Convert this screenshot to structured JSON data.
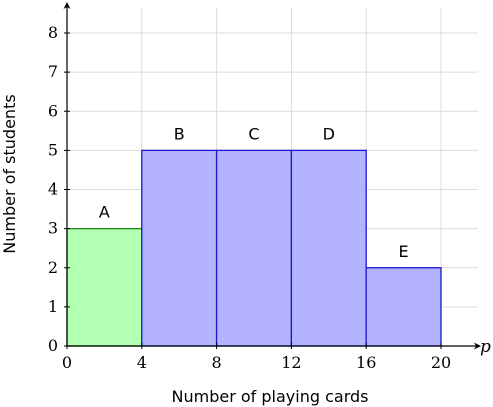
{
  "chart_data": {
    "type": "bar",
    "xlabel": "Number of playing cards",
    "ylabel": "Number of students",
    "x_axis_variable": "p",
    "xlim": [
      0,
      20
    ],
    "ylim": [
      0,
      8
    ],
    "xticks": [
      0,
      4,
      8,
      12,
      16,
      20
    ],
    "yticks": [
      0,
      1,
      2,
      3,
      4,
      5,
      6,
      7,
      8
    ],
    "grid": true,
    "bars": [
      {
        "label": "A",
        "x_start": 0,
        "x_end": 4,
        "value": 3,
        "fill": "#b3ffb3",
        "stroke": "#1a8c1a"
      },
      {
        "label": "B",
        "x_start": 4,
        "x_end": 8,
        "value": 5,
        "fill": "#b3b3ff",
        "stroke": "#1a1acc"
      },
      {
        "label": "C",
        "x_start": 8,
        "x_end": 12,
        "value": 5,
        "fill": "#b3b3ff",
        "stroke": "#1a1acc"
      },
      {
        "label": "D",
        "x_start": 12,
        "x_end": 16,
        "value": 5,
        "fill": "#b3b3ff",
        "stroke": "#1a1acc"
      },
      {
        "label": "E",
        "x_start": 16,
        "x_end": 20,
        "value": 2,
        "fill": "#b3b3ff",
        "stroke": "#1a1acc"
      }
    ]
  }
}
